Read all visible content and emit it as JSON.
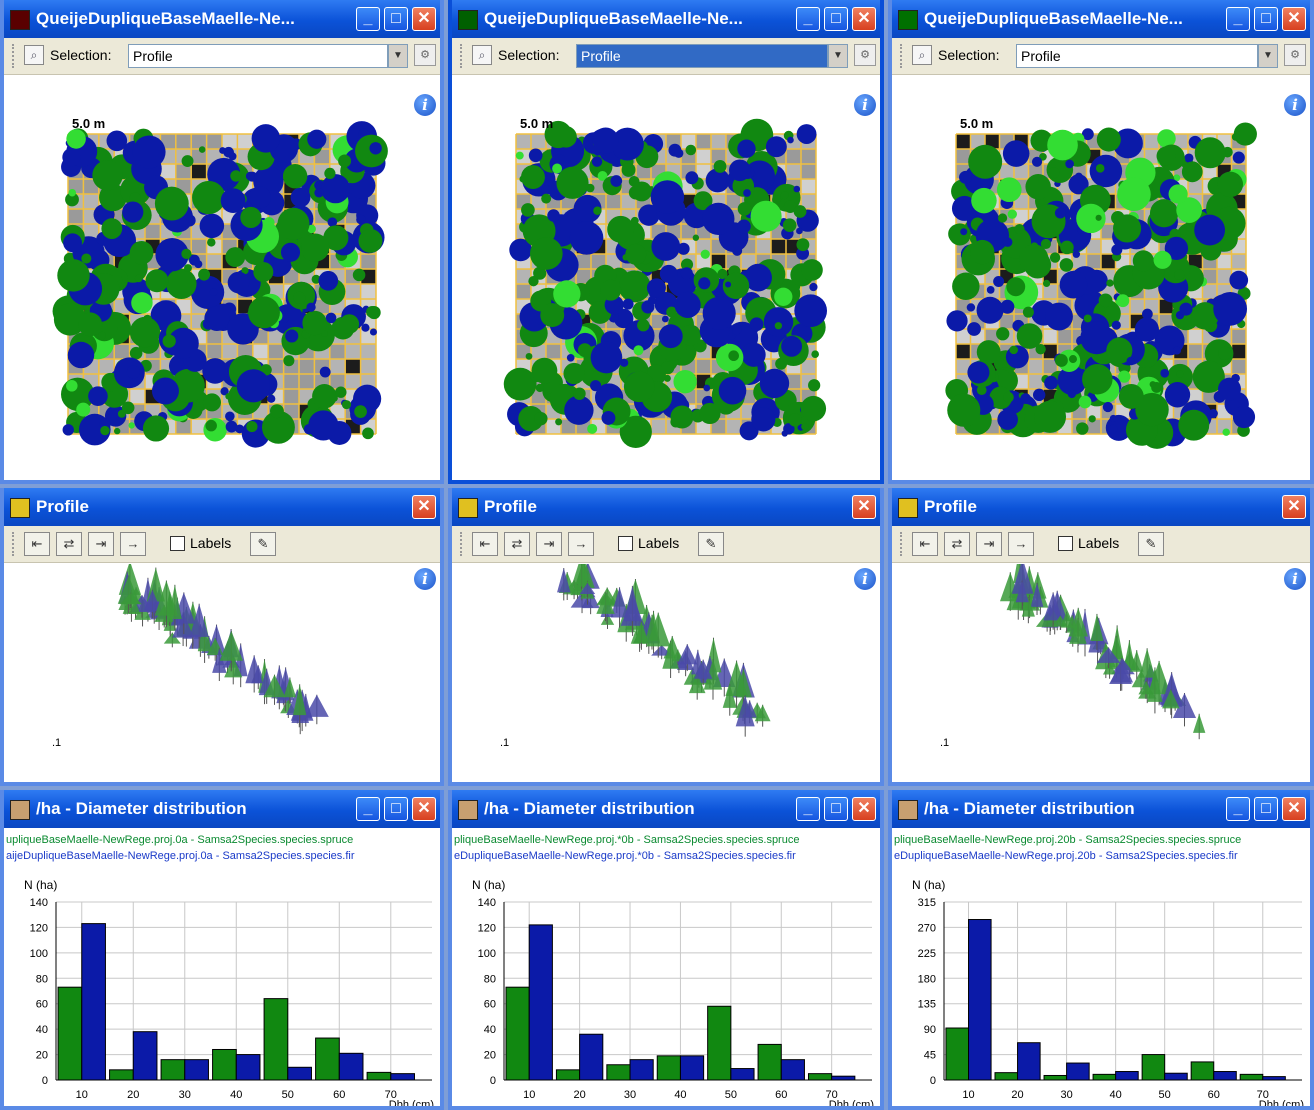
{
  "columns": [
    {
      "map": {
        "title": "QueijeDupliqueBaseMaelle-Ne...",
        "icon_color": "#5a0000",
        "selection_label": "Selection:",
        "selection_value": "Profile",
        "active": false,
        "scale": "5.0 m",
        "seed": 11
      },
      "profile": {
        "title": "Profile",
        "labels_label": "Labels",
        "corner": "1",
        "seed": 21,
        "start": [
          0.28,
          0.18
        ],
        "end": [
          0.72,
          0.78
        ]
      },
      "hist": {
        "title": "/ha - Diameter distribution",
        "legend1": "upliqueBaseMaelle-NewRege.proj.0a - Samsa2Species.species.spruce",
        "legend2": "aijeDupliqueBaseMaelle-NewRege.proj.0a - Samsa2Species.species.fir",
        "ylabel": "N (ha)",
        "xlabel": "Dbh (cm)"
      }
    },
    {
      "map": {
        "title": "QueijeDupliqueBaseMaelle-Ne...",
        "icon_color": "#006000",
        "selection_label": "Selection:",
        "selection_value": "Profile",
        "active": true,
        "scale": "5.0 m",
        "seed": 37
      },
      "profile": {
        "title": "Profile",
        "labels_label": "Labels",
        "corner": "1",
        "seed": 43,
        "start": [
          0.28,
          0.14
        ],
        "end": [
          0.72,
          0.75
        ]
      },
      "hist": {
        "title": "/ha - Diameter distribution",
        "legend1": "pliqueBaseMaelle-NewRege.proj.*0b - Samsa2Species.species.spruce",
        "legend2": "eDupliqueBaseMaelle-NewRege.proj.*0b - Samsa2Species.species.fir",
        "ylabel": "N (ha)",
        "xlabel": "Dbh (cm)"
      }
    },
    {
      "map": {
        "title": "QueijeDupliqueBaseMaelle-Ne...",
        "icon_color": "#007000",
        "selection_label": "Selection:",
        "selection_value": "Profile",
        "active": false,
        "scale": "5.0 m",
        "seed": 59
      },
      "profile": {
        "title": "Profile",
        "labels_label": "Labels",
        "corner": "1",
        "seed": 67,
        "start": [
          0.29,
          0.16
        ],
        "end": [
          0.72,
          0.75
        ]
      },
      "hist": {
        "title": "/ha - Diameter distribution",
        "legend1": "pliqueBaseMaelle-NewRege.proj.20b - Samsa2Species.species.spruce",
        "legend2": "eDupliqueBaseMaelle-NewRege.proj.20b - Samsa2Species.species.fir",
        "ylabel": "N (ha)",
        "xlabel": "Dbh (cm)"
      }
    }
  ],
  "colors": {
    "spruce": "#118811",
    "fir": "#0b1aa8",
    "grid_yellow": "#f0c040"
  },
  "chart_data": [
    {
      "type": "bar",
      "categories": [
        "10",
        "20",
        "30",
        "40",
        "50",
        "60",
        "70"
      ],
      "ylim": [
        0,
        140
      ],
      "yticks": [
        "0",
        "20",
        "40",
        "60",
        "80",
        "100",
        "120",
        "140"
      ],
      "xlabel": "Dbh (cm)",
      "ylabel": "N (ha)",
      "series": [
        {
          "values": [
            73,
            8,
            16,
            24,
            64,
            33,
            6
          ]
        },
        {
          "values": [
            123,
            38,
            16,
            20,
            10,
            21,
            5
          ]
        }
      ]
    },
    {
      "type": "bar",
      "categories": [
        "10",
        "20",
        "30",
        "40",
        "50",
        "60",
        "70"
      ],
      "ylim": [
        0,
        140
      ],
      "yticks": [
        "0",
        "20",
        "40",
        "60",
        "80",
        "100",
        "120",
        "140"
      ],
      "xlabel": "Dbh (cm)",
      "ylabel": "N (ha)",
      "series": [
        {
          "values": [
            73,
            8,
            12,
            19,
            58,
            28,
            5
          ]
        },
        {
          "values": [
            122,
            36,
            16,
            19,
            9,
            16,
            3
          ]
        }
      ]
    },
    {
      "type": "bar",
      "categories": [
        "10",
        "20",
        "30",
        "40",
        "50",
        "60",
        "70"
      ],
      "ylim": [
        0,
        315
      ],
      "yticks": [
        "0",
        "45",
        "90",
        "135",
        "180",
        "225",
        "270",
        "315"
      ],
      "xlabel": "Dbh (cm)",
      "ylabel": "N (ha)",
      "series": [
        {
          "values": [
            92,
            13,
            8,
            10,
            45,
            32,
            10
          ]
        },
        {
          "values": [
            284,
            66,
            30,
            15,
            12,
            15,
            6
          ]
        }
      ]
    }
  ]
}
